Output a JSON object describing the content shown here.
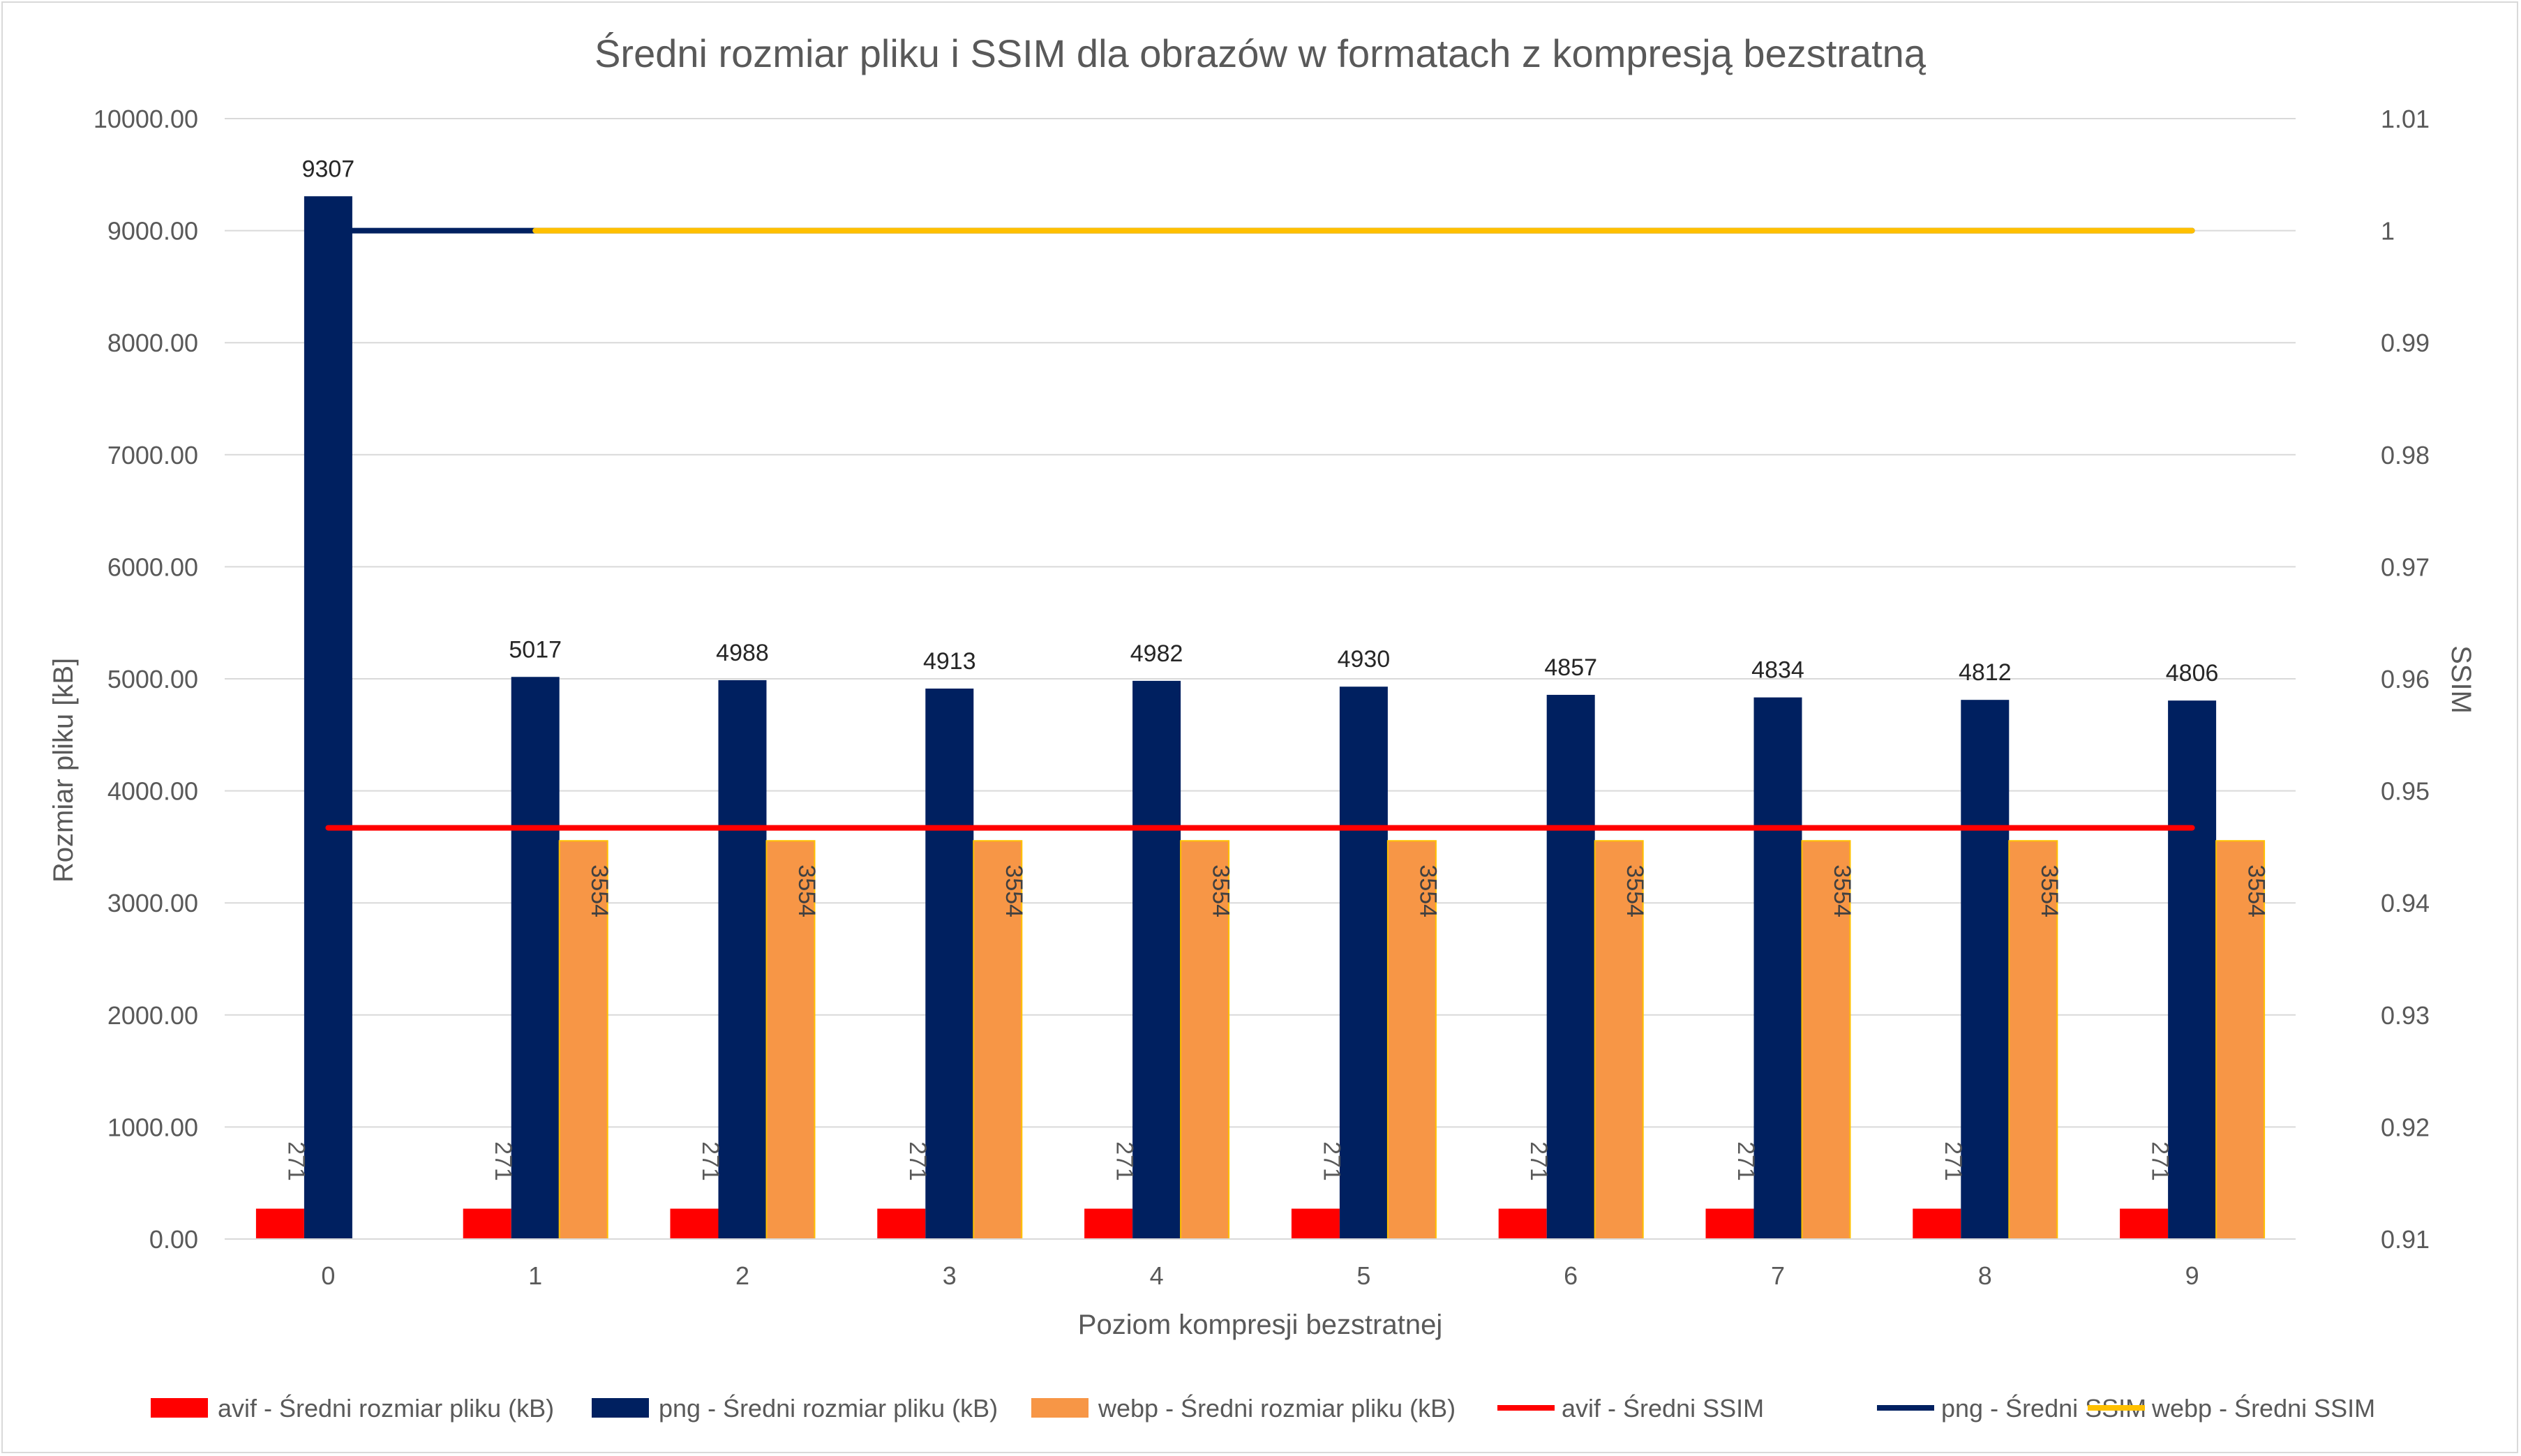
{
  "chart_data": {
    "type": "bar",
    "title": "Średni rozmiar pliku i SSIM dla obrazów w formatach z kompresją bezstratną",
    "xlabel": "Poziom kompresji bezstratnej",
    "ylabel": "Rozmiar pliku [kB]",
    "y2label": "SSIM",
    "categories": [
      "0",
      "1",
      "2",
      "3",
      "4",
      "5",
      "6",
      "7",
      "8",
      "9"
    ],
    "ylim": [
      0,
      10000
    ],
    "y2lim": [
      0.91,
      1.01
    ],
    "yticks": [
      "0.00",
      "1000.00",
      "2000.00",
      "3000.00",
      "4000.00",
      "5000.00",
      "6000.00",
      "7000.00",
      "8000.00",
      "9000.00",
      "10000.00"
    ],
    "y2ticks": [
      "0.91",
      "0.92",
      "0.93",
      "0.94",
      "0.95",
      "0.96",
      "0.97",
      "0.98",
      "0.99",
      "1",
      "1.01"
    ],
    "grid": true,
    "legend_position": "bottom",
    "series": [
      {
        "name": "avif - Średni rozmiar pliku (kB)",
        "kind": "bar",
        "axis": "left",
        "color": "#ff0000",
        "values": [
          271,
          271,
          271,
          271,
          271,
          271,
          271,
          271,
          271,
          271
        ],
        "labels": [
          "271",
          "271",
          "271",
          "271",
          "271",
          "271",
          "271",
          "271",
          "271",
          "271"
        ]
      },
      {
        "name": "png - Średni rozmiar pliku (kB)",
        "kind": "bar",
        "axis": "left",
        "color": "#002060",
        "values": [
          9307,
          5017,
          4988,
          4913,
          4982,
          4930,
          4857,
          4834,
          4812,
          4806
        ],
        "labels": [
          "9307",
          "5017",
          "4988",
          "4913",
          "4982",
          "4930",
          "4857",
          "4834",
          "4812",
          "4806"
        ]
      },
      {
        "name": "webp - Średni rozmiar pliku (kB)",
        "kind": "bar",
        "axis": "left",
        "color": "#f79646",
        "values": [
          null,
          3554,
          3554,
          3554,
          3554,
          3554,
          3554,
          3554,
          3554,
          3554
        ],
        "labels": [
          "",
          "3554",
          "3554",
          "3554",
          "3554",
          "3554",
          "3554",
          "3554",
          "3554",
          "3554"
        ]
      },
      {
        "name": "avif - Średni SSIM",
        "kind": "line",
        "axis": "right",
        "color": "#ff0000",
        "values": [
          0.9467,
          0.9467,
          0.9467,
          0.9467,
          0.9467,
          0.9467,
          0.9467,
          0.9467,
          0.9467,
          0.9467
        ]
      },
      {
        "name": "png - Średni SSIM",
        "kind": "line",
        "axis": "right",
        "color": "#002060",
        "values": [
          1,
          1,
          1,
          1,
          1,
          1,
          1,
          1,
          1,
          1
        ]
      },
      {
        "name": "webp - Średni SSIM",
        "kind": "line",
        "axis": "right",
        "color": "#ffc000",
        "values": [
          null,
          1,
          1,
          1,
          1,
          1,
          1,
          1,
          1,
          1
        ]
      }
    ]
  }
}
